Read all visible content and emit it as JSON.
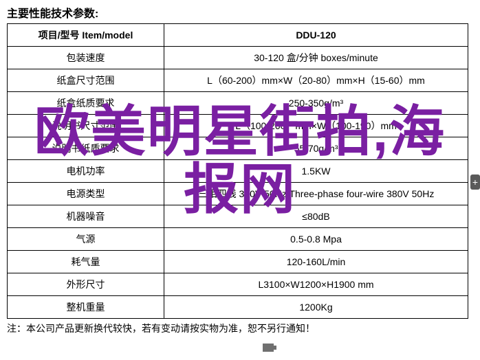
{
  "title": "主要性能技术参数:",
  "footnote": "注：本公司产品更新换代较快，若有变动请按实物为准，恕不另行通知！",
  "overlay_line1": "欧美明星街拍,海",
  "overlay_line2": "报网",
  "side_btn": "+",
  "table": {
    "header": {
      "c1": "项目/型号 Item/model",
      "c2": "DDU-120"
    },
    "rows": [
      {
        "c1": "包装速度",
        "c2": "30-120 盒/分钟 boxes/minute"
      },
      {
        "c1": "纸盒尺寸范围",
        "c2": "L（60-200）mm×W（20-80）mm×H（15-60）mm"
      },
      {
        "c1": "纸盒纸质要求",
        "c2": "250-350g/m³"
      },
      {
        "c1": "说明书尺寸范围",
        "c2": "L（100-260）mm×W（100-190）mm"
      },
      {
        "c1": "说明书纸质要求",
        "c2": "55-70g/m³"
      },
      {
        "c1": "电机功率",
        "c2": "1.5KW"
      },
      {
        "c1": "电源类型",
        "c2": "三相四线 380V 50Hz Three-phase four-wire 380V 50Hz"
      },
      {
        "c1": "机器噪音",
        "c2": "≤80dB"
      },
      {
        "c1": "气源",
        "c2": "0.5-0.8 Mpa"
      },
      {
        "c1": "耗气量",
        "c2": "120-160L/min"
      },
      {
        "c1": "外形尺寸",
        "c2": "L3100×W1200×H1900 mm"
      },
      {
        "c1": "整机重量",
        "c2": "1200Kg"
      }
    ]
  },
  "colors": {
    "overlay": "#7a1fa2",
    "border": "#000000",
    "bg": "#ffffff"
  }
}
